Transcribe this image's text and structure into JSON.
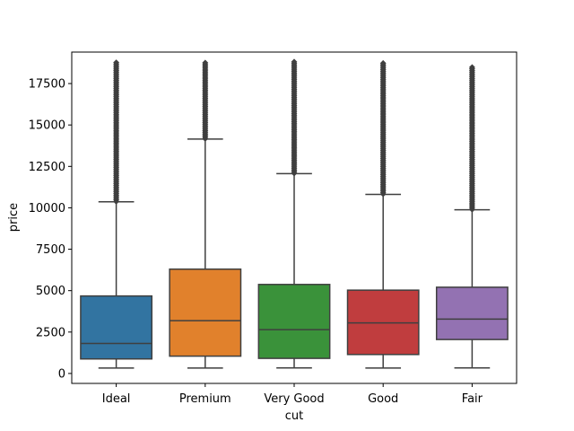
{
  "chart_data": {
    "type": "boxplot",
    "title": "",
    "xlabel": "cut",
    "ylabel": "price",
    "ylim": [
      -600,
      19400
    ],
    "yticks": [
      0,
      2500,
      5000,
      7500,
      10000,
      12500,
      15000,
      17500
    ],
    "ytick_labels": [
      "0",
      "2500",
      "5000",
      "7500",
      "10000",
      "12500",
      "15000",
      "17500"
    ],
    "grid": false,
    "legend": "none",
    "categories": [
      "Ideal",
      "Premium",
      "Very Good",
      "Good",
      "Fair"
    ],
    "colors": [
      "#3274a1",
      "#e1812c",
      "#3a923a",
      "#c03d3e",
      "#9372b2"
    ],
    "edge_color": "#3f3f3f",
    "boxes": [
      {
        "whisker_low": 326,
        "q1": 878,
        "median": 1810,
        "q3": 4678,
        "whisker_high": 10360,
        "outliers_from": 10380,
        "outliers_to": 18806
      },
      {
        "whisker_low": 326,
        "q1": 1046,
        "median": 3185,
        "q3": 6296,
        "whisker_high": 14150,
        "outliers_from": 14170,
        "outliers_to": 18823
      },
      {
        "whisker_low": 336,
        "q1": 912,
        "median": 2648,
        "q3": 5373,
        "whisker_high": 12060,
        "outliers_from": 12080,
        "outliers_to": 18818
      },
      {
        "whisker_low": 327,
        "q1": 1145,
        "median": 3050,
        "q3": 5029,
        "whisker_high": 10810,
        "outliers_from": 10830,
        "outliers_to": 18788
      },
      {
        "whisker_low": 337,
        "q1": 2050,
        "median": 3282,
        "q3": 5206,
        "whisker_high": 9880,
        "outliers_from": 9900,
        "outliers_to": 18574
      }
    ]
  }
}
